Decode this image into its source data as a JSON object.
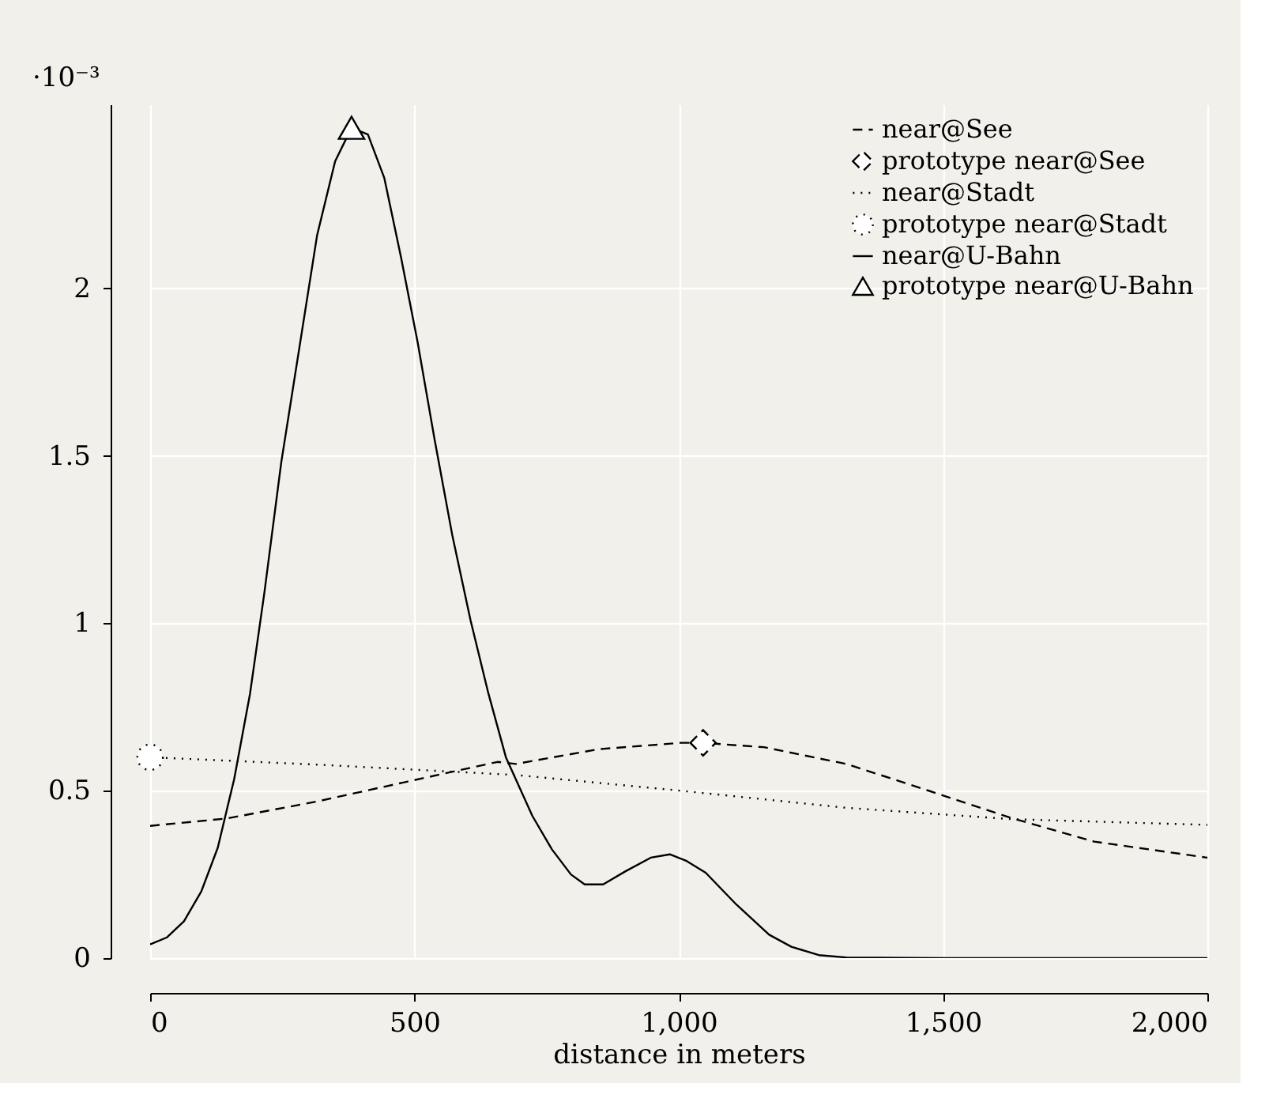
{
  "chart_data": {
    "type": "line",
    "xlabel": "distance in meters",
    "ylabel": "·10⁻³",
    "xlim": [
      0,
      2000
    ],
    "xticks": [
      0,
      500,
      {
        "value": 1000,
        "label": "1,000"
      },
      {
        "value": 1500,
        "label": "1,500"
      },
      {
        "value": 2000,
        "label": "2,000"
      }
    ],
    "ylim": [
      0,
      2.55
    ],
    "yticks": [
      0,
      0.5,
      1,
      1.5,
      2
    ],
    "grid": true,
    "legend": "top right",
    "series": [
      {
        "name": "near@See",
        "color": "#000000",
        "line_style": "dashed",
        "marker": "none",
        "x": [
          0,
          145,
          316,
          486,
          657,
          692,
          848,
          1004,
          1046,
          1161,
          1317,
          1473,
          1630,
          1786,
          2000
        ],
        "values": [
          0.395,
          0.417,
          0.468,
          0.527,
          0.586,
          0.58,
          0.624,
          0.643,
          0.643,
          0.63,
          0.58,
          0.5,
          0.418,
          0.348,
          0.3
        ]
      },
      {
        "name": "prototype near@See",
        "color": "#000000",
        "type": "scatter",
        "line_style": "dashed",
        "marker": "diamond",
        "x": [
          1046
        ],
        "values": [
          0.643
        ]
      },
      {
        "name": "near@Stadt",
        "color": "#000000",
        "line_style": "dotted",
        "marker": "none",
        "x": [
          0,
          316,
          692,
          1004,
          1317,
          1630,
          2000
        ],
        "values": [
          0.6,
          0.578,
          0.547,
          0.5,
          0.449,
          0.415,
          0.398
        ]
      },
      {
        "name": "prototype near@Stadt",
        "color": "#000000",
        "type": "scatter",
        "line_style": "dotted",
        "marker": "circle",
        "x": [
          0
        ],
        "values": [
          0.6
        ]
      },
      {
        "name": "near@U-Bahn",
        "color": "#000000",
        "line_style": "solid",
        "marker": "none",
        "x": [
          0,
          32,
          64,
          97,
          128,
          159,
          189,
          216,
          248,
          282,
          316,
          350,
          381,
          412,
          443,
          475,
          506,
          538,
          572,
          606,
          640,
          673,
          723,
          760,
          796,
          822,
          857,
          900,
          947,
          983,
          1015,
          1051,
          1109,
          1171,
          1213,
          1265,
          1317,
          1500,
          2000
        ],
        "values": [
          0.041,
          0.062,
          0.11,
          0.2,
          0.33,
          0.535,
          0.79,
          1.09,
          1.48,
          1.82,
          2.16,
          2.38,
          2.48,
          2.46,
          2.33,
          2.09,
          1.84,
          1.55,
          1.26,
          1.01,
          0.79,
          0.6,
          0.425,
          0.325,
          0.25,
          0.22,
          0.22,
          0.26,
          0.3,
          0.31,
          0.29,
          0.255,
          0.16,
          0.07,
          0.034,
          0.009,
          0.002,
          0,
          0
        ]
      },
      {
        "name": "prototype near@U-Bahn",
        "color": "#000000",
        "type": "scatter",
        "line_style": "solid",
        "marker": "triangle",
        "x": [
          381
        ],
        "values": [
          2.48
        ]
      }
    ]
  }
}
